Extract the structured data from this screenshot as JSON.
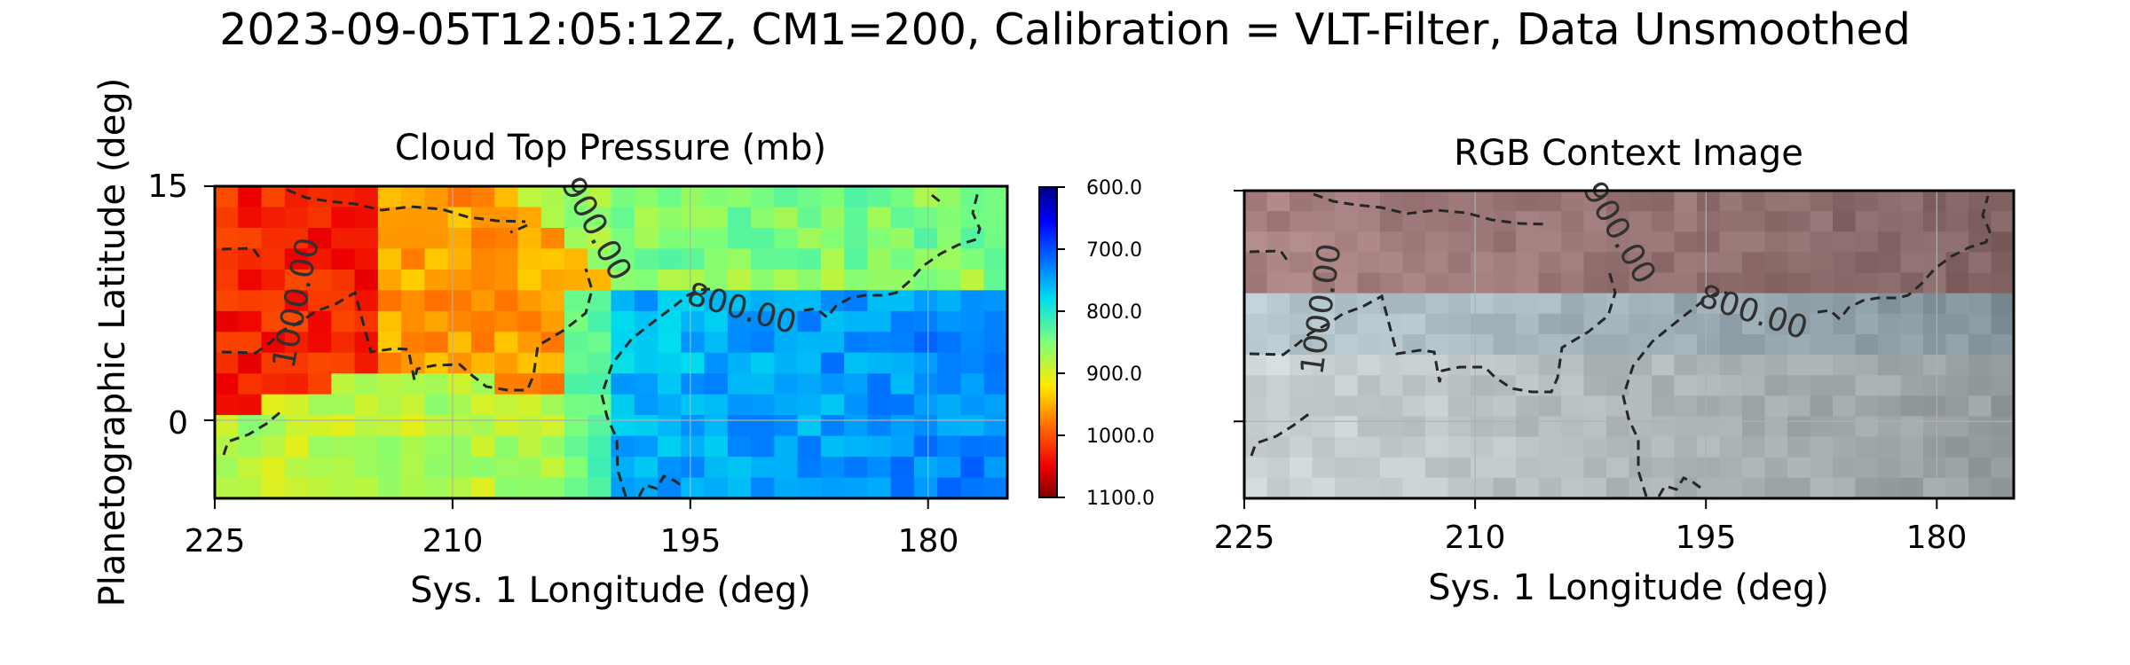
{
  "figure": {
    "title": "2023-09-05T12:05:12Z, CM1=200, Calibration = VLT-Filter, Data Unsmoothed"
  },
  "chart_data": [
    {
      "type": "heatmap",
      "title": "Cloud Top Pressure (mb)",
      "xlabel": "Sys. 1 Longitude (deg)",
      "ylabel": "Planetographic Latitude (deg)",
      "xlim": [
        225,
        175
      ],
      "ylim": [
        -5,
        15
      ],
      "xticks": [
        225,
        210,
        195,
        180
      ],
      "yticks": [
        15,
        0
      ],
      "grid": true,
      "colormap": "jet_r",
      "colorbar": {
        "range": [
          600,
          1100
        ],
        "ticks": [
          "600.0",
          "700.0",
          "800.0",
          "900.0",
          "1000.0",
          "1100.0"
        ]
      },
      "contours": [
        {
          "level": 1000,
          "label": "1000.00"
        },
        {
          "level": 900,
          "label": "900.00"
        },
        {
          "level": 800,
          "label": "800.00"
        }
      ],
      "regions_approx_mb": [
        {
          "lon": [
            225,
            215
          ],
          "lat": [
            4,
            10
          ],
          "value": 1030
        },
        {
          "lon": [
            213,
            205
          ],
          "lat": [
            5,
            9
          ],
          "value": 960
        },
        {
          "lon": [
            200,
            176
          ],
          "lat": [
            -5,
            8
          ],
          "value": 760
        },
        {
          "lon": [
            225,
            200
          ],
          "lat": [
            -5,
            2
          ],
          "value": 880
        },
        {
          "lon": [
            210,
            176
          ],
          "lat": [
            9,
            15
          ],
          "value": 860
        }
      ]
    },
    {
      "type": "heatmap",
      "title": "RGB Context Image",
      "xlabel": "Sys. 1 Longitude (deg)",
      "xlim": [
        225,
        175
      ],
      "ylim": [
        -5,
        15
      ],
      "xticks": [
        225,
        210,
        195,
        180
      ],
      "grid": true,
      "contours": [
        {
          "level": 1000,
          "label": "1000.00"
        },
        {
          "level": 900,
          "label": "900.00"
        },
        {
          "level": 800,
          "label": "800.00"
        }
      ]
    }
  ]
}
